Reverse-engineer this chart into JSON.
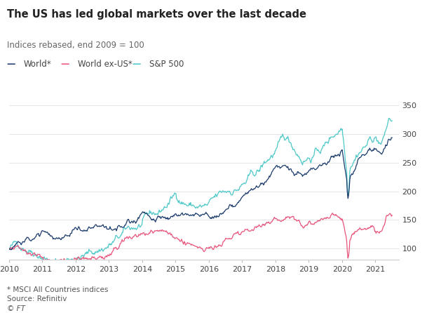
{
  "title": "The US has led global markets over the last decade",
  "subtitle": "Indices rebased, end 2009 = 100",
  "footnote1": "* MSCI All Countries indices",
  "footnote2": "Source: Refinitiv",
  "footnote3": "© FT",
  "legend": [
    "World*",
    "World ex-US*",
    "S&P 500"
  ],
  "colors": {
    "world": "#1a3a6b",
    "world_ex_us": "#e8537a",
    "sp500": "#4ec8c8"
  },
  "background_color": "#ffffff",
  "ylim": [
    80,
    365
  ],
  "yticks": [
    100,
    150,
    200,
    250,
    300,
    350
  ],
  "xticks": [
    2010,
    2011,
    2012,
    2013,
    2014,
    2015,
    2016,
    2017,
    2018,
    2019,
    2020,
    2021
  ],
  "xlim": [
    2010,
    2021.7
  ]
}
